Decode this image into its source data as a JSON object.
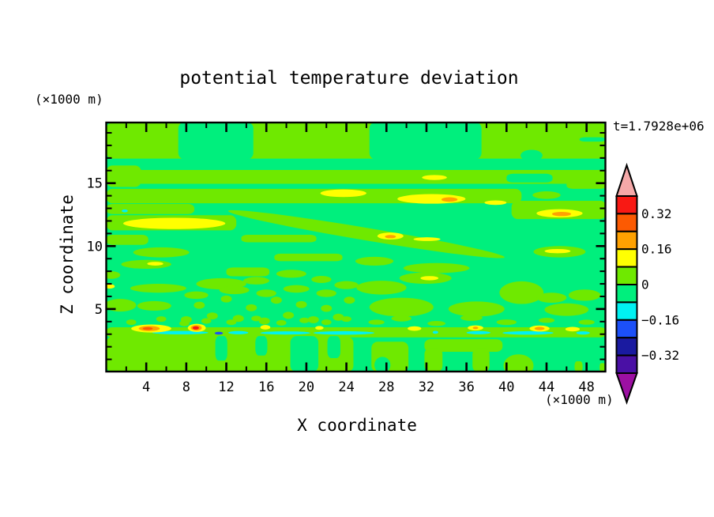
{
  "title": "potential temperature deviation",
  "time_label": "t=1.7928e+06",
  "x_axis": {
    "label": "X coordinate",
    "unit": "(×1000 m)",
    "range": [
      0,
      49.85
    ],
    "major_ticks": [
      4,
      8,
      12,
      16,
      20,
      24,
      28,
      32,
      36,
      40,
      44,
      48
    ],
    "minor_step": 2
  },
  "z_axis": {
    "label": "Z coordinate",
    "unit": "(×1000 m)",
    "range": [
      0,
      19.8
    ],
    "major_ticks": [
      5,
      10,
      15
    ],
    "minor_step": 1
  },
  "colorbar": {
    "up_arrow_color": "#F5A9A9",
    "down_arrow_color": "#9C10A2",
    "cell_colors": [
      "#F81914",
      "#FC5A02",
      "#FFA101",
      "#FFFF02",
      "#6FE900",
      "#00EF7D",
      "#00F2F2",
      "#1C50F8",
      "#1A1AA0",
      "#4A10A5"
    ],
    "boundary_values": [
      0.4,
      0.32,
      0.24,
      0.16,
      0.08,
      0,
      -0.08,
      -0.16,
      -0.24,
      -0.32,
      -0.4
    ],
    "labels": [
      {
        "text": "0.32",
        "boundary_index": 1
      },
      {
        "text": "0.16",
        "boundary_index": 3
      },
      {
        "text": "0",
        "boundary_index": 5
      },
      {
        "text": "−0.16",
        "boundary_index": 7
      },
      {
        "text": "−0.32",
        "boundary_index": 9
      }
    ]
  },
  "chart_data": {
    "type": "filled_contour",
    "title": "potential temperature deviation",
    "xlabel": "X coordinate (×1000 m)",
    "ylabel": "Z coordinate (×1000 m)",
    "x_range": [
      0,
      49.85
    ],
    "z_range": [
      0,
      19.8
    ],
    "contour_interval": 0.08,
    "background_level_color_key": "S",
    "palette": {
      "C": "#6FE900",
      "S": "#00EF7D",
      "Y": "#FFFF00",
      "O": "#FFA101",
      "OR": "#FC5A02",
      "R": "#F81914",
      "CY": "#00F2F2",
      "B": "#1C50F8"
    },
    "features": [
      [
        "r",
        "C",
        0,
        16.95,
        50,
        19.8
      ],
      [
        "r",
        "S",
        7.2,
        16.9,
        14.7,
        19.85
      ],
      [
        "r",
        "S",
        26.3,
        16.9,
        37.5,
        19.85
      ],
      [
        "e",
        "S",
        42.5,
        17.2,
        1.1,
        0.45
      ],
      [
        "r",
        "S",
        47.3,
        18.3,
        49.9,
        18.65
      ],
      [
        "r",
        "C",
        0,
        14.95,
        50,
        16.05
      ],
      [
        "r",
        "C",
        0,
        14.7,
        3.5,
        16.4
      ],
      [
        "r",
        "S",
        40,
        15.05,
        44.6,
        15.75
      ],
      [
        "r",
        "C",
        46,
        14.55,
        50,
        15.2
      ],
      [
        "e",
        "Y",
        32.8,
        15.45,
        1.25,
        0.2
      ],
      [
        "r",
        "C",
        0,
        13.4,
        41.5,
        14.55
      ],
      [
        "e",
        "C",
        44,
        14.05,
        1.4,
        0.3
      ],
      [
        "r",
        "C",
        40.5,
        12.15,
        50,
        13.6
      ],
      [
        "e",
        "Y",
        23.7,
        14.2,
        2.3,
        0.3
      ],
      [
        "e",
        "Y",
        32.5,
        13.75,
        3.4,
        0.38
      ],
      [
        "e",
        "O",
        34.3,
        13.7,
        0.8,
        0.18
      ],
      [
        "e",
        "Y",
        38.9,
        13.45,
        1.1,
        0.18
      ],
      [
        "e",
        "Y",
        45.3,
        12.6,
        2.3,
        0.33
      ],
      [
        "e",
        "O",
        45.5,
        12.55,
        0.95,
        0.17
      ],
      [
        "r",
        "C",
        0,
        12.55,
        8.8,
        13.35
      ],
      [
        "r",
        "C",
        0,
        11.25,
        13,
        12.45
      ],
      [
        "e",
        "Y",
        6.8,
        11.8,
        5.1,
        0.45
      ],
      [
        "e",
        "CY",
        1.85,
        12.8,
        0.3,
        0.12
      ],
      [
        "e",
        "C",
        26,
        10.95,
        14,
        0.5,
        9.5
      ],
      [
        "r",
        "C",
        0,
        10.1,
        4.2,
        10.9
      ],
      [
        "r",
        "C",
        13.5,
        10.3,
        21,
        10.9
      ],
      [
        "e",
        "C",
        5.5,
        9.5,
        2.8,
        0.4
      ],
      [
        "r",
        "C",
        16.8,
        8.8,
        23.6,
        9.4
      ],
      [
        "r",
        "C",
        12,
        7.6,
        16.3,
        8.3
      ],
      [
        "e",
        "Y",
        28.4,
        10.8,
        1.3,
        0.28
      ],
      [
        "e",
        "O",
        28.4,
        10.75,
        0.55,
        0.13
      ],
      [
        "e",
        "Y",
        32.05,
        10.55,
        1.35,
        0.15
      ],
      [
        "e",
        "C",
        45.3,
        9.55,
        2.6,
        0.45
      ],
      [
        "e",
        "Y",
        45.1,
        9.6,
        1.3,
        0.17
      ],
      [
        "e",
        "C",
        33,
        8.25,
        3.3,
        0.4
      ],
      [
        "e",
        "C",
        26.8,
        8.8,
        1.9,
        0.35
      ],
      [
        "e",
        "C",
        4,
        8.55,
        2.5,
        0.35
      ],
      [
        "e",
        "Y",
        4.9,
        8.6,
        0.8,
        0.15
      ],
      [
        "e",
        "C",
        0.5,
        7.7,
        0.9,
        0.3
      ],
      [
        "e",
        "C",
        5.2,
        6.65,
        2.8,
        0.35
      ],
      [
        "e",
        "Y",
        0.35,
        6.8,
        0.5,
        0.18
      ],
      [
        "e",
        "C",
        11.5,
        7,
        2.5,
        0.45
      ],
      [
        "e",
        "C",
        31.9,
        7.45,
        2.6,
        0.45
      ],
      [
        "e",
        "Y",
        32.3,
        7.45,
        0.9,
        0.17
      ],
      [
        "e",
        "C",
        41.5,
        6.3,
        2.2,
        0.9
      ],
      [
        "e",
        "C",
        47.8,
        6.1,
        1.6,
        0.45
      ],
      [
        "e",
        "C",
        27.5,
        6.7,
        2.5,
        0.55
      ],
      [
        "e",
        "C",
        29.5,
        5.15,
        3.2,
        0.75
      ],
      [
        "e",
        "C",
        37,
        5,
        2.8,
        0.6
      ],
      [
        "e",
        "C",
        46,
        4.95,
        2.2,
        0.5
      ],
      [
        "e",
        "C",
        44.5,
        5.9,
        1.5,
        0.4
      ],
      [
        "e",
        "C",
        1.4,
        5.3,
        1.6,
        0.5
      ],
      [
        "e",
        "C",
        4.8,
        5.25,
        1.7,
        0.38
      ],
      [
        "e",
        "C",
        8,
        4.15,
        0.55,
        0.28
      ],
      [
        "e",
        "C",
        9.3,
        5.3,
        0.55,
        0.28
      ],
      [
        "e",
        "C",
        10.6,
        4.45,
        0.55,
        0.28
      ],
      [
        "e",
        "C",
        12,
        5.8,
        0.55,
        0.28
      ],
      [
        "e",
        "C",
        13.2,
        4.25,
        0.55,
        0.28
      ],
      [
        "e",
        "C",
        14.5,
        5.1,
        0.55,
        0.28
      ],
      [
        "e",
        "C",
        15.8,
        4.05,
        0.55,
        0.28
      ],
      [
        "e",
        "C",
        17,
        5.7,
        0.55,
        0.28
      ],
      [
        "e",
        "C",
        18.2,
        4.5,
        0.55,
        0.28
      ],
      [
        "e",
        "C",
        19.5,
        5.35,
        0.55,
        0.28
      ],
      [
        "e",
        "C",
        20.7,
        4.15,
        0.55,
        0.28
      ],
      [
        "e",
        "C",
        22,
        5.05,
        0.55,
        0.28
      ],
      [
        "e",
        "C",
        23.2,
        4.35,
        0.55,
        0.28
      ],
      [
        "e",
        "C",
        24.3,
        5.7,
        0.55,
        0.28
      ],
      [
        "e",
        "C",
        9,
        6.1,
        1.2,
        0.3
      ],
      [
        "e",
        "C",
        12.8,
        6.5,
        1.5,
        0.32
      ],
      [
        "e",
        "C",
        16,
        6.25,
        1,
        0.3
      ],
      [
        "e",
        "C",
        19,
        6.6,
        1.3,
        0.3
      ],
      [
        "e",
        "C",
        22,
        6.25,
        1,
        0.3
      ],
      [
        "e",
        "C",
        24,
        6.9,
        1.2,
        0.32
      ],
      [
        "e",
        "C",
        15,
        7.25,
        1.3,
        0.3
      ],
      [
        "e",
        "C",
        18.5,
        7.8,
        1.5,
        0.32
      ],
      [
        "e",
        "C",
        21.5,
        7.35,
        1,
        0.28
      ],
      [
        "e",
        "C",
        2.5,
        3.95,
        0.5,
        0.22
      ],
      [
        "e",
        "C",
        5.5,
        4.2,
        0.5,
        0.22
      ],
      [
        "e",
        "C",
        7.8,
        3.85,
        0.5,
        0.22
      ],
      [
        "e",
        "C",
        10,
        4.05,
        0.5,
        0.22
      ],
      [
        "e",
        "C",
        12.5,
        3.95,
        0.5,
        0.22
      ],
      [
        "e",
        "C",
        15,
        4.25,
        0.5,
        0.22
      ],
      [
        "e",
        "C",
        17.5,
        3.9,
        0.5,
        0.22
      ],
      [
        "e",
        "C",
        19.8,
        4.1,
        0.5,
        0.22
      ],
      [
        "e",
        "C",
        22,
        3.95,
        0.5,
        0.22
      ],
      [
        "e",
        "C",
        24,
        4.2,
        0.5,
        0.22
      ],
      [
        "e",
        "C",
        27,
        3.95,
        0.8,
        0.2
      ],
      [
        "e",
        "C",
        29.5,
        4.25,
        1,
        0.24
      ],
      [
        "e",
        "C",
        33,
        3.85,
        0.9,
        0.2
      ],
      [
        "e",
        "C",
        36.5,
        4.3,
        1.1,
        0.24
      ],
      [
        "e",
        "C",
        40,
        3.95,
        1,
        0.22
      ],
      [
        "e",
        "C",
        44,
        4.1,
        0.8,
        0.2
      ],
      [
        "e",
        "C",
        48,
        3.95,
        0.8,
        0.2
      ],
      [
        "r",
        "C",
        0,
        2.75,
        50,
        3.55
      ],
      [
        "r",
        "C",
        0,
        0,
        24.7,
        2.8
      ],
      [
        "r",
        "S",
        10.9,
        0.9,
        12.1,
        2.85
      ],
      [
        "r",
        "S",
        14.9,
        1.3,
        16.1,
        2.85
      ],
      [
        "r",
        "S",
        18.4,
        0,
        21.2,
        2.85
      ],
      [
        "r",
        "S",
        22.1,
        1.1,
        23.4,
        2.85
      ],
      [
        "r",
        "C",
        26.5,
        0,
        30.2,
        2.4
      ],
      [
        "e",
        "S",
        27.6,
        0.55,
        0.8,
        0.65
      ],
      [
        "r",
        "C",
        31.8,
        1.6,
        39.6,
        2.6
      ],
      [
        "r",
        "C",
        31.8,
        0,
        33.6,
        1.9
      ],
      [
        "r",
        "C",
        36.6,
        0,
        38.3,
        1.9
      ],
      [
        "e",
        "C",
        41.2,
        0.5,
        1.5,
        0.9
      ],
      [
        "r",
        "C",
        46.8,
        0,
        47.6,
        0.85
      ],
      [
        "r",
        "C",
        49.3,
        0,
        49.85,
        0.7
      ],
      [
        "e",
        "CY",
        7.4,
        3.12,
        2.8,
        0.14
      ],
      [
        "e",
        "CY",
        13.2,
        3.12,
        1,
        0.13
      ],
      [
        "e",
        "CY",
        17.9,
        3.1,
        2.5,
        0.13
      ],
      [
        "e",
        "CY",
        23.75,
        3.1,
        3.05,
        0.14
      ],
      [
        "e",
        "CY",
        37.2,
        3.12,
        1.2,
        0.13
      ],
      [
        "e",
        "CY",
        42.15,
        3.1,
        2.55,
        0.14
      ],
      [
        "e",
        "CY",
        47.65,
        3.1,
        0.68,
        0.13
      ],
      [
        "e",
        "CY",
        32.9,
        3.15,
        0.28,
        0.12
      ],
      [
        "e",
        "B",
        11.25,
        3.08,
        0.42,
        0.11
      ],
      [
        "e",
        "Y",
        4.5,
        3.45,
        2,
        0.32
      ],
      [
        "e",
        "O",
        4.3,
        3.45,
        1.05,
        0.2
      ],
      [
        "e",
        "OR",
        4.15,
        3.45,
        0.5,
        0.11
      ],
      [
        "e",
        "Y",
        9.05,
        3.5,
        0.9,
        0.32
      ],
      [
        "e",
        "O",
        9,
        3.5,
        0.55,
        0.22
      ],
      [
        "e",
        "R",
        8.95,
        3.5,
        0.32,
        0.13
      ],
      [
        "e",
        "Y",
        15.9,
        3.55,
        0.5,
        0.18
      ],
      [
        "e",
        "Y",
        21.3,
        3.5,
        0.42,
        0.15
      ],
      [
        "e",
        "Y",
        30.8,
        3.45,
        0.68,
        0.18
      ],
      [
        "e",
        "Y",
        36.9,
        3.5,
        0.78,
        0.2
      ],
      [
        "e",
        "O",
        36.9,
        3.5,
        0.27,
        0.1
      ],
      [
        "e",
        "Y",
        43.3,
        3.45,
        1,
        0.24
      ],
      [
        "e",
        "O",
        43.3,
        3.45,
        0.5,
        0.13
      ],
      [
        "e",
        "Y",
        46.6,
        3.4,
        0.72,
        0.18
      ]
    ]
  }
}
